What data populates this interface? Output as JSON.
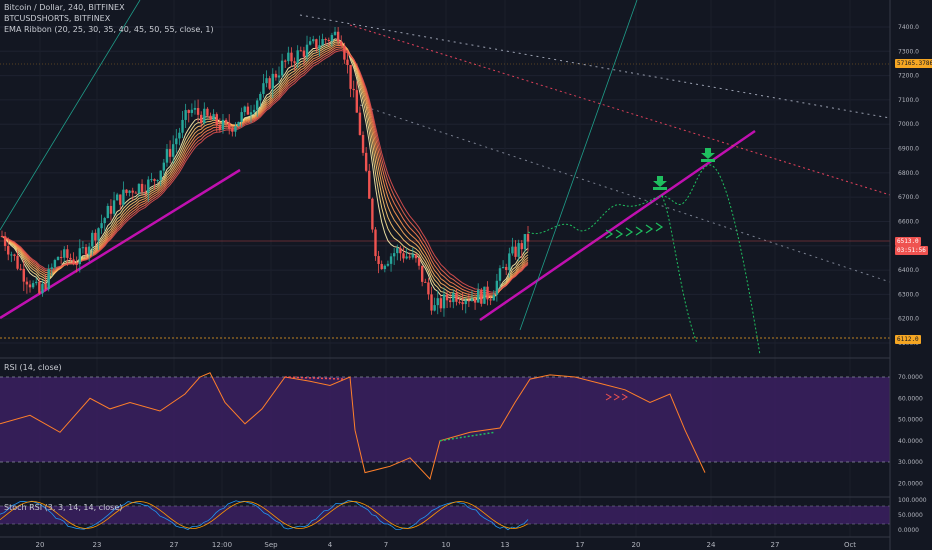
{
  "header": {
    "symbol_line": "Bitcoin / Dollar, 240, BITFINEX",
    "shorts_line": "BTCUSDSHORTS, BITFINEX",
    "ribbon_line": "EMA Ribbon (20, 25, 30, 35, 40, 45, 50, 55, close, 1)"
  },
  "panes": {
    "rsi_title": "RSI (14, close)",
    "stoch_title": "Stoch RSI (3, 3, 14, 14, close)"
  },
  "price_tags": {
    "shorts": "57165.3786",
    "last_price": "6513.0",
    "countdown": "03:51:56",
    "low_line": "6112.0"
  },
  "colors": {
    "background": "#131722",
    "up_candle": "#26a69a",
    "down_candle": "#ef5350",
    "trendline": "#c010b0",
    "rsi_band": "#3b2060",
    "rsi_line": "#ff7f2a",
    "projection": "#1fbf5f"
  },
  "chart_data": [
    {
      "type": "candlestick",
      "price_axis": {
        "ticks": [
          "7400.0",
          "7300.0",
          "7200.0",
          "7100.0",
          "7000.0",
          "6900.0",
          "6800.0",
          "6700.0",
          "6600.0",
          "6500.0",
          "6400.0",
          "6300.0",
          "6200.0",
          "6100.0"
        ],
        "ylim": [
          6100,
          7450
        ]
      },
      "time_axis": {
        "ticks": [
          "20",
          "23",
          "27",
          "12:00",
          "Sep",
          "4",
          "7",
          "10",
          "13",
          "17",
          "20",
          "24",
          "27",
          "Oct"
        ]
      },
      "close_path": [
        {
          "d": "Aug 18",
          "close": 6540
        },
        {
          "d": "Aug 19",
          "close": 6400
        },
        {
          "d": "Aug 20",
          "close": 6300
        },
        {
          "d": "Aug 21",
          "close": 6460
        },
        {
          "d": "Aug 22",
          "close": 6440
        },
        {
          "d": "Aug 23",
          "close": 6560
        },
        {
          "d": "Aug 24",
          "close": 6680
        },
        {
          "d": "Aug 25",
          "close": 6740
        },
        {
          "d": "Aug 26",
          "close": 6760
        },
        {
          "d": "Aug 27",
          "close": 6900
        },
        {
          "d": "Aug 28",
          "close": 7060
        },
        {
          "d": "Aug 29",
          "close": 7020
        },
        {
          "d": "Aug 30",
          "close": 6980
        },
        {
          "d": "Aug 31",
          "close": 7050
        },
        {
          "d": "Sep 1",
          "close": 7150
        },
        {
          "d": "Sep 2",
          "close": 7250
        },
        {
          "d": "Sep 3",
          "close": 7300
        },
        {
          "d": "Sep 4",
          "close": 7340
        },
        {
          "d": "Sep 5",
          "close": 7380
        },
        {
          "d": "Sep 5.5",
          "close": 7000
        },
        {
          "d": "Sep 6",
          "close": 6420
        },
        {
          "d": "Sep 7",
          "close": 6480
        },
        {
          "d": "Sep 8",
          "close": 6440
        },
        {
          "d": "Sep 9",
          "close": 6240
        },
        {
          "d": "Sep 10",
          "close": 6300
        },
        {
          "d": "Sep 11",
          "close": 6290
        },
        {
          "d": "Sep 12",
          "close": 6300
        },
        {
          "d": "Sep 13",
          "close": 6450
        },
        {
          "d": "Sep 14",
          "close": 6530
        }
      ],
      "rsi_levels": [
        "70.0000",
        "60.0000",
        "50.0000",
        "40.0000",
        "30.0000",
        "20.0000"
      ],
      "stoch_levels": [
        "100.0000",
        "50.0000",
        "0.0000"
      ]
    }
  ]
}
